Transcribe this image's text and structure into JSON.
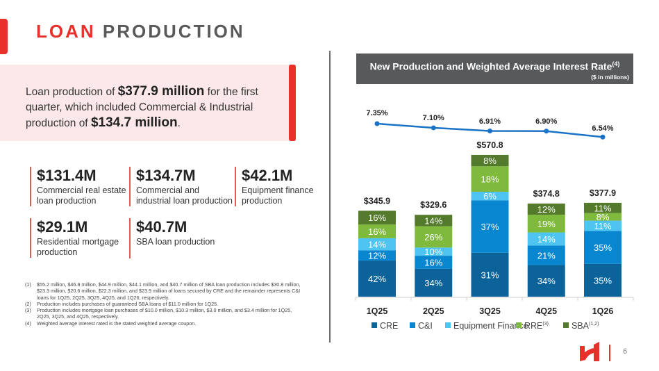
{
  "page": {
    "title_part1": "LOAN",
    "title_part2": "PRODUCTION",
    "page_number": "6"
  },
  "callout": {
    "t1": "Loan production of ",
    "b1": "$377.9 million",
    "t2": " for the first quarter, which included Commercial & Industrial production of ",
    "b2": "$134.7 million",
    "t3": "."
  },
  "stats": [
    {
      "value": "$131.4M",
      "label": "Commercial real estate loan production"
    },
    {
      "value": "$134.7M",
      "label": "Commercial and industrial loan production"
    },
    {
      "value": "$42.1M",
      "label": "Equipment finance production"
    },
    {
      "value": "$29.1M",
      "label": "Residential mortgage production"
    },
    {
      "value": "$40.7M",
      "label": "SBA loan production"
    }
  ],
  "footnotes": [
    {
      "num": "(1)",
      "text": "$55.2 million, $46.8 million, $44.9 million, $44.1 million, and $40.7 million of SBA loan production includes $30.8 million, $23.3 million, $20.6 million, $22.3 million, and $23.9 million of loans secured by CRE and the remainder represents C&I loans for 1Q25, 2Q25, 3Q25, 4Q25, and 1Q26, respectively."
    },
    {
      "num": "(2)",
      "text": "Production includes purchases of guaranteed SBA loans of $11.0 million for 1Q25."
    },
    {
      "num": "(3)",
      "text": "Production includes mortgage loan purchases of $10.0 million, $10.3 million, $3.0 million, and $3.4 million for 1Q25, 2Q25, 3Q25, and 4Q25, respectively."
    },
    {
      "num": "(4)",
      "text": "Weighted average interest rated is the stated weighted average coupon."
    }
  ],
  "chart_header": {
    "title": "New Production and Weighted Average Interest Rate",
    "title_sup": "(4)",
    "subtitle": "($ in millions)"
  },
  "chart_data": {
    "type": "bar",
    "stacked": true,
    "title": "New Production and Weighted Average Interest Rate",
    "subtitle": "($ in millions)",
    "categories": [
      "1Q25",
      "2Q25",
      "3Q25",
      "4Q25",
      "1Q26"
    ],
    "totals": [
      345.9,
      329.6,
      570.8,
      374.8,
      377.9
    ],
    "total_labels": [
      "$345.9",
      "$329.6",
      "$570.8",
      "$374.8",
      "$377.9"
    ],
    "ylim": [
      0,
      600
    ],
    "series": [
      {
        "name": "CRE",
        "sup": "",
        "color": "#0b6399",
        "values": [
          42,
          34,
          31,
          34,
          35
        ]
      },
      {
        "name": "C&I",
        "sup": "",
        "color": "#0886d0",
        "values": [
          12,
          16,
          37,
          21,
          35
        ]
      },
      {
        "name": "Equipment Finance",
        "sup": "",
        "color": "#4ec4f0",
        "values": [
          14,
          10,
          6,
          14,
          11
        ]
      },
      {
        "name": "RRE",
        "sup": "(3)",
        "color": "#7fba3c",
        "values": [
          16,
          26,
          18,
          19,
          8
        ]
      },
      {
        "name": "SBA",
        "sup": "(1,2)",
        "color": "#547a2c",
        "values": [
          16,
          14,
          8,
          12,
          11
        ]
      }
    ],
    "value_unit": "% of quarterly production",
    "rate_line": {
      "name": "Weighted Average Interest Rate",
      "color": "#1a73c6",
      "values": [
        7.35,
        7.1,
        6.91,
        6.9,
        6.54
      ],
      "labels": [
        "7.35%",
        "7.10%",
        "6.91%",
        "6.90%",
        "6.54%"
      ]
    },
    "legend_position": "bottom",
    "grid": false
  }
}
